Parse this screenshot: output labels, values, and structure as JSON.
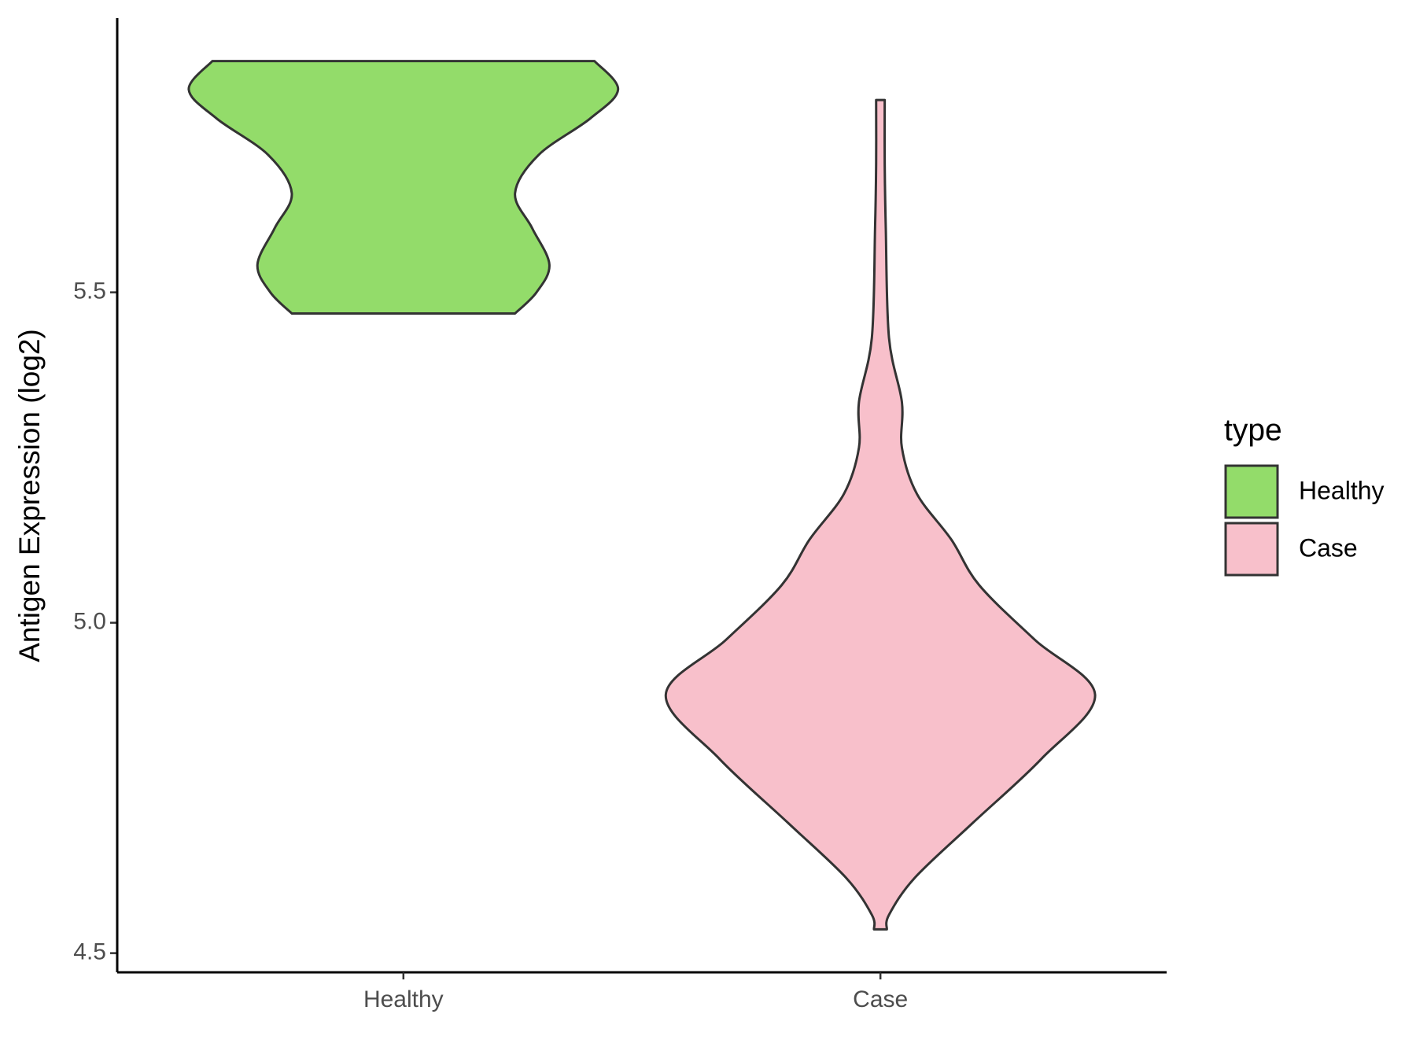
{
  "chart_data": {
    "type": "violin",
    "ylabel": "Antigen Expression (log2)",
    "categories": [
      "Healthy",
      "Case"
    ],
    "legend_title": "type",
    "series": [
      {
        "name": "Healthy",
        "color": "#93dc6a",
        "y": [
          5.85,
          5.807,
          5.763,
          5.708,
          5.65,
          5.597,
          5.542,
          5.5,
          5.468
        ],
        "density": [
          0.89,
          1.0,
          0.87,
          0.63,
          0.52,
          0.6,
          0.68,
          0.62,
          0.52
        ]
      },
      {
        "name": "Case",
        "color": "#f8c0cb",
        "y": [
          5.791,
          5.694,
          5.597,
          5.431,
          5.334,
          5.265,
          5.195,
          5.126,
          5.057,
          4.974,
          4.891,
          4.794,
          4.697,
          4.614,
          4.558,
          4.536
        ],
        "density": [
          0.02,
          0.02,
          0.025,
          0.04,
          0.1,
          0.1,
          0.17,
          0.33,
          0.46,
          0.72,
          1.0,
          0.75,
          0.43,
          0.16,
          0.04,
          0.03
        ]
      }
    ],
    "ylim": [
      4.471,
      5.915
    ],
    "yticks": [
      4.5,
      {
        "value": 5,
        "label": "5.0"
      },
      5.5
    ]
  }
}
